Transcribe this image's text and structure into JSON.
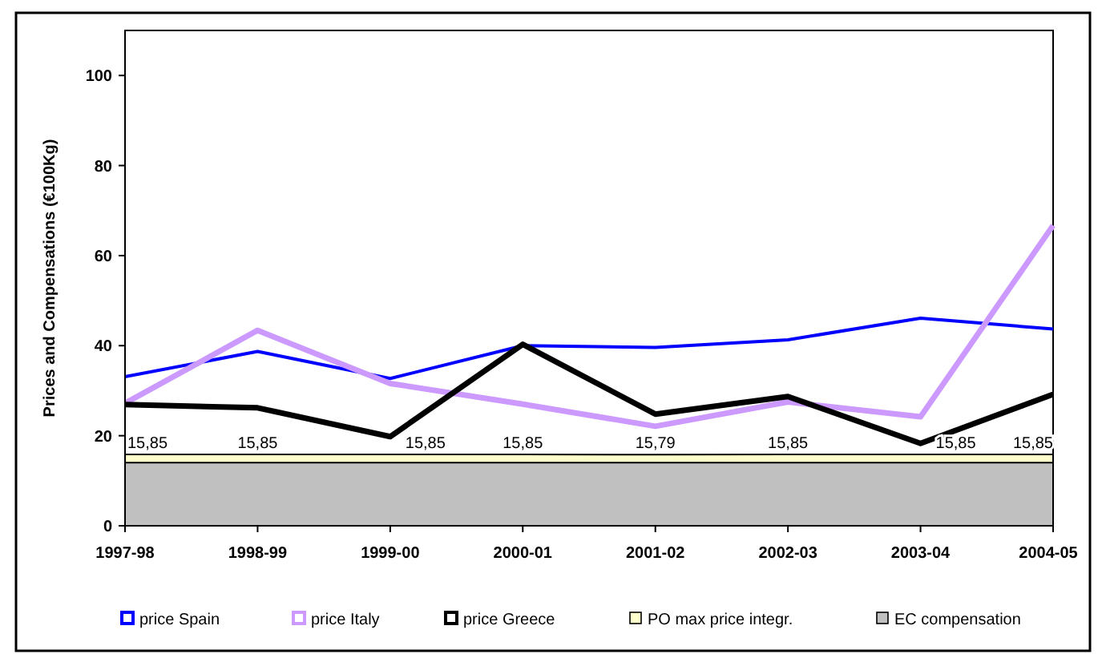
{
  "chart_data": {
    "type": "line",
    "ylabel": "Prices and Compensations (€100Kg)",
    "categories": [
      "1997-98",
      "1998-99",
      "1999-00",
      "2000-01",
      "2001-02",
      "2002-03",
      "2003-04",
      "2004-05"
    ],
    "ylim": [
      0,
      110
    ],
    "yticks": [
      0,
      20,
      40,
      60,
      80,
      100
    ],
    "grid": false,
    "legend": "bottom",
    "series": [
      {
        "name": "price Spain",
        "color": "#0000ff",
        "values": [
          33.1,
          38.7,
          32.7,
          40.0,
          39.6,
          41.3,
          46.1,
          43.7
        ]
      },
      {
        "name": "price Italy",
        "color": "#cc99ff",
        "values": [
          27.2,
          43.4,
          31.6,
          27.0,
          22.1,
          27.5,
          24.2,
          66.7
        ]
      },
      {
        "name": "price Greece",
        "color": "#000000",
        "values": [
          26.9,
          26.2,
          19.8,
          40.3,
          24.8,
          28.7,
          18.3,
          29.2
        ]
      },
      {
        "name": "PO max price integr.",
        "type": "area",
        "color": "#ffffcc",
        "values": [
          15.85,
          15.85,
          15.85,
          15.85,
          15.79,
          15.85,
          15.85,
          15.85
        ],
        "value_labels": [
          "15,85",
          "15,85",
          "15,85",
          "15,85",
          "15,79",
          "15,85",
          "15,85",
          "15,85"
        ]
      },
      {
        "name": "EC compensation",
        "type": "area",
        "color": "#c0c0c0",
        "values": [
          14,
          14,
          14,
          14,
          14,
          14,
          14,
          14
        ]
      }
    ]
  }
}
